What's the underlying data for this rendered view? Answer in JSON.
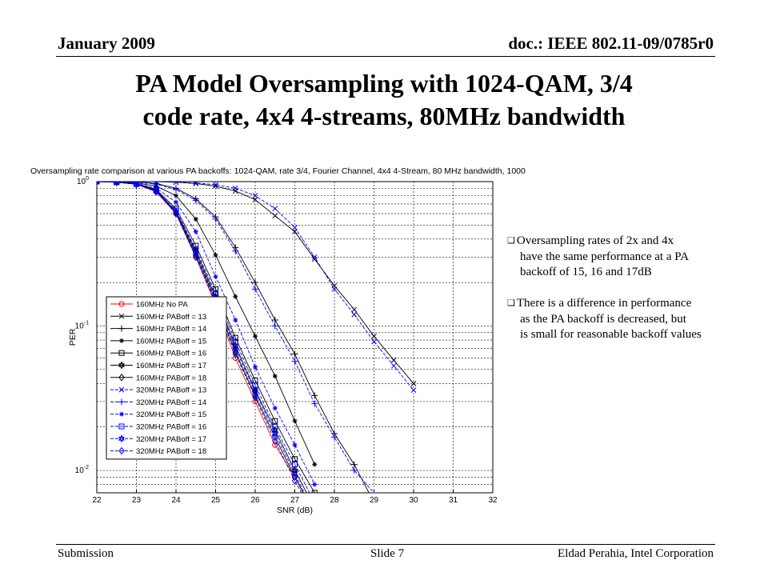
{
  "header": {
    "date": "January 2009",
    "doc": "doc.: IEEE 802.11-09/0785r0"
  },
  "slide": {
    "title_line1": "PA Model Oversampling with 1024-QAM, 3/4",
    "title_line2": "code rate, 4x4 4-streams, 80MHz bandwidth"
  },
  "notes": [
    {
      "lines": [
        "Oversampling rates of 2x and 4x",
        "have the same performance at a PA",
        "backoff of 15, 16 and 17dB"
      ]
    },
    {
      "lines": [
        "There is a difference in performance",
        "as the PA backoff is decreased, but",
        "is small for reasonable backoff values"
      ]
    }
  ],
  "footer": {
    "left": "Submission",
    "center": "Slide 7",
    "right": "Eldad Perahia, Intel Corporation"
  },
  "chart_data": {
    "type": "line",
    "title": "Oversampling rate comparison at various PA backoffs: 1024-QAM, rate 3/4, Fourier Channel, 4x4 4-Stream, 80 MHz bandwidth, 1000",
    "xlabel": "SNR (dB)",
    "ylabel": "PER",
    "xlim": [
      22,
      32
    ],
    "ylim": [
      0.007,
      1
    ],
    "y_scale": "log",
    "grid": true,
    "legend_position": "left-bottom",
    "x_ticks": [
      "22",
      "23",
      "24",
      "25",
      "26",
      "27",
      "28",
      "29",
      "30",
      "31",
      "32"
    ],
    "y_ticks": [
      {
        "value": 1,
        "base": "10",
        "exp": "0"
      },
      {
        "value": 0.1,
        "base": "10",
        "exp": "-1"
      },
      {
        "value": 0.01,
        "base": "10",
        "exp": "-2"
      }
    ],
    "series": [
      {
        "name": "160MHz No PA",
        "color": "#ff0000",
        "dash": "solid",
        "marker": "circle",
        "x": [
          22,
          22.5,
          23,
          23.5,
          24,
          24.5,
          25,
          25.5,
          26,
          26.5,
          27,
          27.5
        ],
        "y": [
          1,
          0.99,
          0.96,
          0.85,
          0.6,
          0.3,
          0.14,
          0.06,
          0.03,
          0.015,
          0.009,
          0.005
        ]
      },
      {
        "name": "160MHz PABoff = 13",
        "color": "#000000",
        "dash": "solid",
        "marker": "x",
        "x": [
          22,
          22.5,
          23,
          23.5,
          24,
          24.5,
          25,
          25.5,
          26,
          26.5,
          27,
          27.5,
          28,
          28.5,
          29,
          29.5,
          30
        ],
        "y": [
          1,
          1,
          1,
          1,
          0.99,
          0.97,
          0.93,
          0.86,
          0.75,
          0.58,
          0.45,
          0.29,
          0.19,
          0.13,
          0.085,
          0.058,
          0.04
        ]
      },
      {
        "name": "160MHz PABoff = 14",
        "color": "#000000",
        "dash": "solid",
        "marker": "plus",
        "x": [
          22,
          22.5,
          23,
          23.5,
          24,
          24.5,
          25,
          25.5,
          26,
          26.5,
          27,
          27.5,
          28,
          28.5,
          29
        ],
        "y": [
          1,
          1,
          1,
          0.97,
          0.9,
          0.76,
          0.57,
          0.35,
          0.2,
          0.11,
          0.064,
          0.033,
          0.018,
          0.011,
          0.006
        ]
      },
      {
        "name": "160MHz PABoff = 15",
        "color": "#000000",
        "dash": "solid",
        "marker": "star",
        "x": [
          22,
          22.5,
          23,
          23.5,
          24,
          24.5,
          25,
          25.5,
          26,
          26.5,
          27,
          27.5
        ],
        "y": [
          1,
          1,
          0.98,
          0.93,
          0.8,
          0.55,
          0.31,
          0.16,
          0.085,
          0.045,
          0.022,
          0.011
        ]
      },
      {
        "name": "160MHz PABoff = 16",
        "color": "#000000",
        "dash": "solid",
        "marker": "square",
        "x": [
          22,
          22.5,
          23,
          23.5,
          24,
          24.5,
          25,
          25.5,
          26,
          26.5,
          27,
          27.5
        ],
        "y": [
          1,
          0.99,
          0.97,
          0.88,
          0.65,
          0.36,
          0.18,
          0.083,
          0.042,
          0.022,
          0.012,
          0.007
        ]
      },
      {
        "name": "160MHz PABoff = 17",
        "color": "#000000",
        "dash": "solid",
        "marker": "hexagram",
        "x": [
          22,
          22.5,
          23,
          23.5,
          24,
          24.5,
          25,
          25.5,
          26,
          26.5,
          27,
          27.5
        ],
        "y": [
          1,
          0.99,
          0.96,
          0.87,
          0.62,
          0.33,
          0.16,
          0.073,
          0.036,
          0.019,
          0.01,
          0.0055
        ]
      },
      {
        "name": "160MHz PABoff = 18",
        "color": "#000000",
        "dash": "solid",
        "marker": "diamond",
        "x": [
          22,
          22.5,
          23,
          23.5,
          24,
          24.5,
          25,
          25.5,
          26,
          26.5,
          27,
          27.5
        ],
        "y": [
          1,
          0.99,
          0.96,
          0.86,
          0.61,
          0.31,
          0.15,
          0.066,
          0.033,
          0.017,
          0.009,
          0.005
        ]
      },
      {
        "name": "320MHz PABoff = 13",
        "color": "#0000ff",
        "dash": "dashed",
        "marker": "x",
        "x": [
          22,
          22.5,
          23,
          23.5,
          24,
          24.5,
          25,
          25.5,
          26,
          26.5,
          27,
          27.5,
          28,
          28.5,
          29,
          29.5,
          30
        ],
        "y": [
          1,
          1,
          1,
          1,
          0.99,
          0.98,
          0.95,
          0.9,
          0.8,
          0.65,
          0.48,
          0.3,
          0.18,
          0.12,
          0.078,
          0.053,
          0.036
        ]
      },
      {
        "name": "320MHz PABoff = 14",
        "color": "#0000ff",
        "dash": "dashed",
        "marker": "plus",
        "x": [
          22,
          22.5,
          23,
          23.5,
          24,
          24.5,
          25,
          25.5,
          26,
          26.5,
          27,
          27.5,
          28,
          28.5,
          29
        ],
        "y": [
          1,
          1,
          0.99,
          0.96,
          0.88,
          0.74,
          0.55,
          0.33,
          0.18,
          0.1,
          0.057,
          0.029,
          0.017,
          0.01,
          0.007
        ]
      },
      {
        "name": "320MHz PABoff = 15",
        "color": "#0000ff",
        "dash": "dashed",
        "marker": "star",
        "x": [
          22,
          22.5,
          23,
          23.5,
          24,
          24.5,
          25,
          25.5,
          26,
          26.5,
          27,
          27.5
        ],
        "y": [
          1,
          0.99,
          0.97,
          0.9,
          0.72,
          0.45,
          0.22,
          0.11,
          0.052,
          0.027,
          0.015,
          0.008
        ]
      },
      {
        "name": "320MHz PABoff = 16",
        "color": "#0000ff",
        "dash": "dashed",
        "marker": "square",
        "x": [
          22,
          22.5,
          23,
          23.5,
          24,
          24.5,
          25,
          25.5,
          26,
          26.5,
          27,
          27.5
        ],
        "y": [
          1,
          0.99,
          0.96,
          0.87,
          0.63,
          0.34,
          0.17,
          0.078,
          0.039,
          0.02,
          0.011,
          0.006
        ]
      },
      {
        "name": "320MHz PABoff = 17",
        "color": "#0000ff",
        "dash": "dashed",
        "marker": "hexagram",
        "x": [
          22,
          22.5,
          23,
          23.5,
          24,
          24.5,
          25,
          25.5,
          26,
          26.5,
          27,
          27.5
        ],
        "y": [
          1,
          0.99,
          0.96,
          0.86,
          0.62,
          0.32,
          0.155,
          0.07,
          0.035,
          0.018,
          0.0095,
          0.005
        ]
      },
      {
        "name": "320MHz PABoff = 18",
        "color": "#0000ff",
        "dash": "dashed",
        "marker": "diamond",
        "x": [
          22,
          22.5,
          23,
          23.5,
          24,
          24.5,
          25,
          25.5,
          26,
          26.5,
          27,
          27.5
        ],
        "y": [
          1,
          0.99,
          0.96,
          0.85,
          0.6,
          0.3,
          0.145,
          0.064,
          0.032,
          0.016,
          0.0085,
          0.0048
        ]
      }
    ]
  }
}
